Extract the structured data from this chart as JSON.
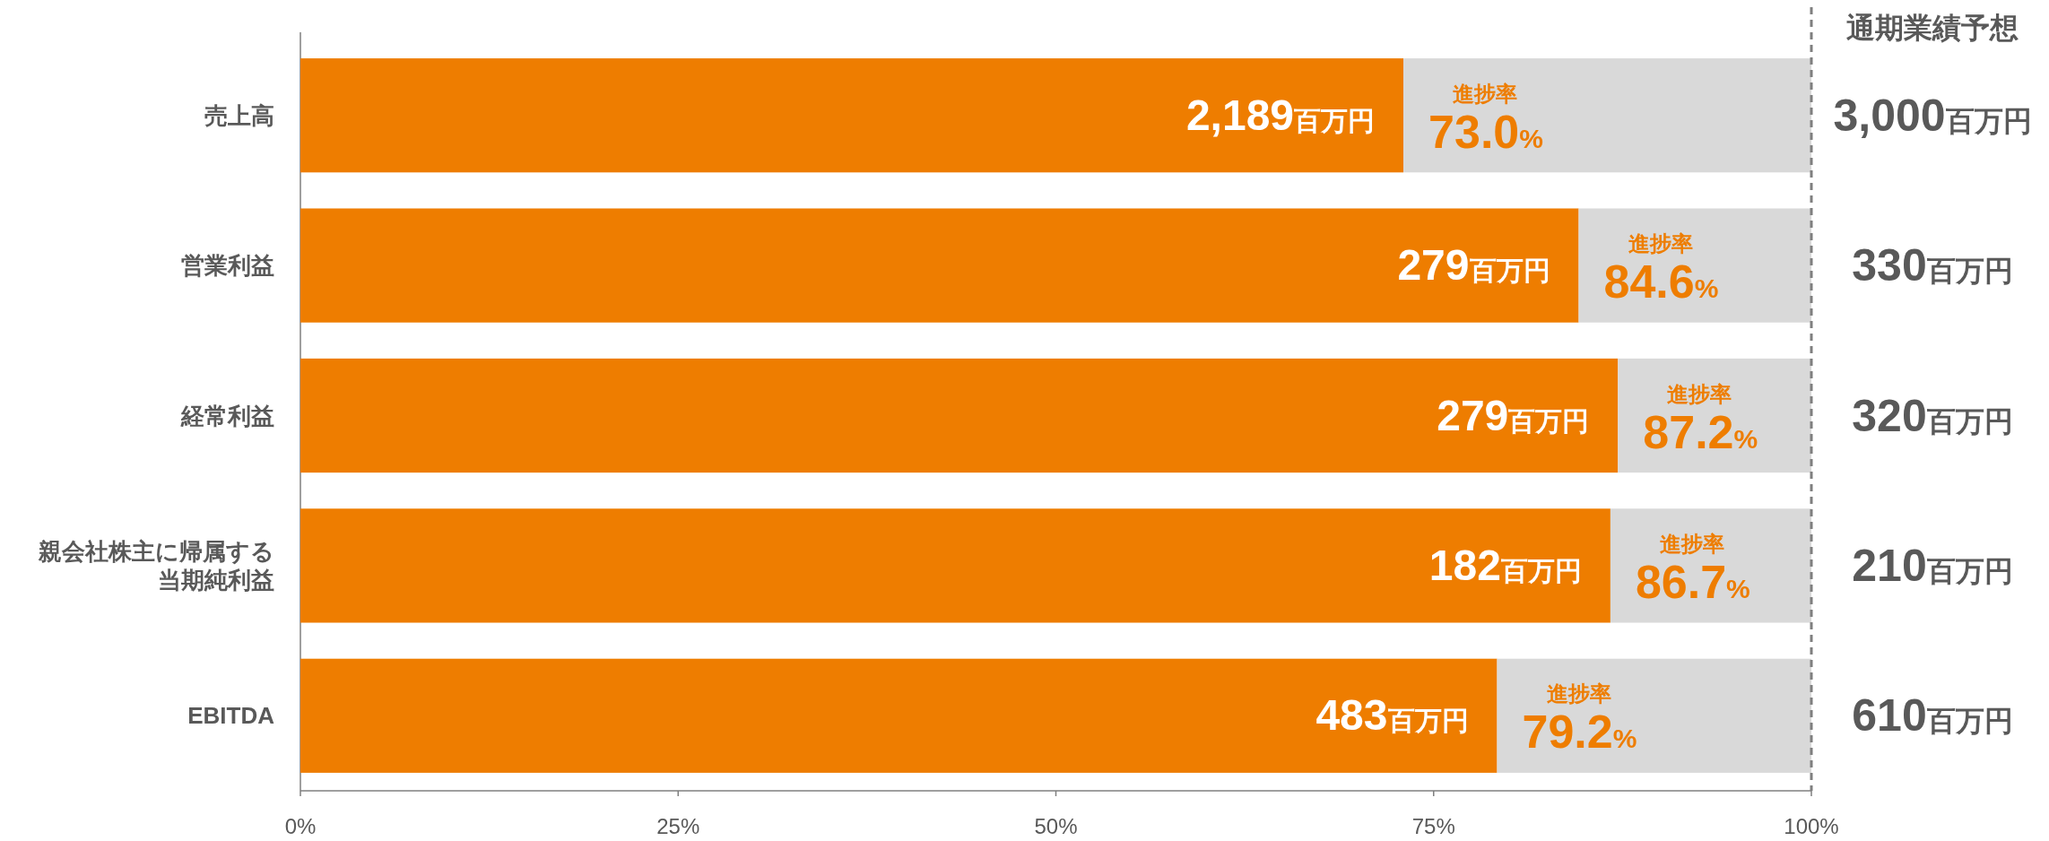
{
  "chart_data": {
    "type": "bar",
    "orientation": "horizontal",
    "stacked": true,
    "categories": [
      "売上高",
      "営業利益",
      "経常利益",
      "親会社株主に帰属する当期純利益",
      "EBITDA"
    ],
    "series": [
      {
        "color": "#ee7d00",
        "values": [
          73.0,
          84.6,
          87.2,
          86.7,
          79.2
        ],
        "value_labels": [
          "進捗率\n73.0%",
          "進捗率\n84.6%",
          "進捗率\n87.2%",
          "進捗率\n86.7%",
          "進捗率\n79.2%"
        ]
      },
      {
        "color": "#d9d9d9",
        "values": [
          27.0,
          15.4,
          12.8,
          13.3,
          20.8
        ]
      }
    ],
    "xlim": [
      0,
      100
    ],
    "xticks": [
      {
        "value": 0,
        "label": "0%"
      },
      {
        "value": 25,
        "label": "25%"
      },
      {
        "value": 50,
        "label": "50%"
      },
      {
        "value": 75,
        "label": "75%"
      },
      {
        "value": 100,
        "label": "100%"
      }
    ],
    "ref_lines": [
      {
        "axis": "x",
        "value": 100,
        "label": "通期業績予想",
        "color": "#7f7f7f",
        "line_style": "dashed"
      }
    ],
    "annotations": [
      "3,000百万円",
      "330百万円",
      "320百万円",
      "210百万円",
      "610百万円",
      {
        "text": "2,189百万円",
        "x": 73.0,
        "y": "売上高"
      },
      {
        "text": "279百万円",
        "x": 84.6,
        "y": "営業利益"
      },
      {
        "text": "279百万円",
        "x": 87.2,
        "y": "経常利益"
      },
      {
        "text": "182百万円",
        "x": 86.7,
        "y": "親会社株主に帰属する当期純利益"
      },
      {
        "text": "483百万円",
        "x": 79.2,
        "y": "EBITDA"
      }
    ]
  }
}
